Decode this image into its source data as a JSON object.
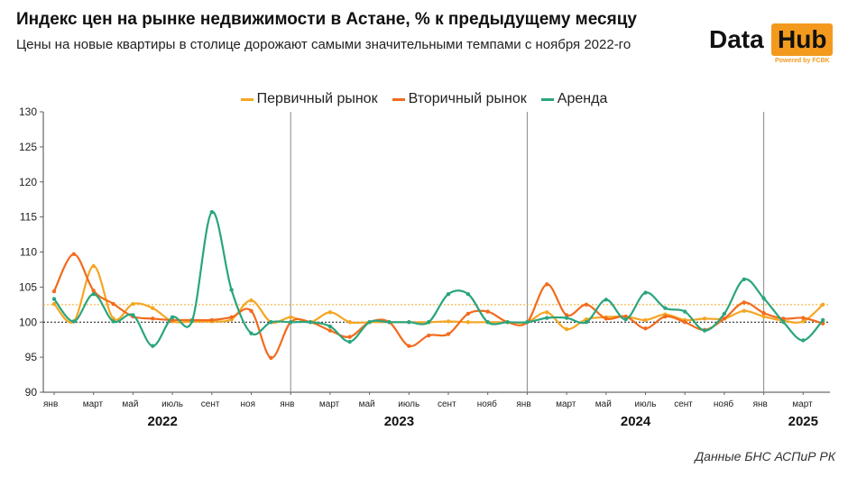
{
  "header": {
    "title": "Индекс цен на рынке недвижимости в Астане, % к предыдущему месяцу",
    "subtitle": "Цены на новые квартиры в столице дорожают самыми значительными темпами с ноября 2022-го"
  },
  "logo": {
    "data": "Data",
    "hub": "Hub",
    "powered": "Powered by FCBK"
  },
  "source": "Данные БНС АСПиР РК",
  "colors": {
    "primary": "#f5a623",
    "secondary": "#f26b1d",
    "rent": "#2aa57e",
    "baseline": "#111111",
    "axis": "#666666"
  },
  "chart_data": {
    "type": "line",
    "ylim": [
      90,
      130
    ],
    "yticks": [
      90,
      95,
      100,
      105,
      110,
      115,
      120,
      125,
      130
    ],
    "x_tick_labels": [
      "янв",
      "март",
      "май",
      "июль",
      "сент",
      "ноя",
      "янв",
      "март",
      "май",
      "июль",
      "сент",
      "нояб",
      "янв",
      "март",
      "май",
      "июль",
      "сент",
      "нояб",
      "янв",
      "март"
    ],
    "x_tick_months": [
      0,
      2,
      4,
      6,
      8,
      10,
      12,
      14,
      16,
      18,
      20,
      22,
      24,
      26,
      28,
      30,
      32,
      34,
      36,
      38
    ],
    "years": [
      {
        "label": "2022",
        "center_month": 5.5
      },
      {
        "label": "2023",
        "center_month": 17.5
      },
      {
        "label": "2024",
        "center_month": 29.5
      },
      {
        "label": "2025",
        "center_month": 38
      }
    ],
    "year_separators_months": [
      12,
      24,
      36
    ],
    "reference_lines": [
      {
        "value": 102.5,
        "color": "#f5a623",
        "style": "dotted"
      },
      {
        "value": 100,
        "color": "#111111",
        "style": "dotted"
      }
    ],
    "series": [
      {
        "name": "Первичный рынок",
        "color": "#f5a623",
        "values": [
          102.6,
          100.1,
          108.0,
          100.5,
          102.6,
          102.0,
          100.1,
          100.1,
          100.1,
          100.4,
          103.1,
          100.0,
          100.7,
          100.0,
          101.4,
          100.0,
          100.0,
          100.0,
          100.0,
          100.0,
          100.1,
          100.0,
          100.0,
          100.0,
          100.0,
          101.4,
          99.0,
          100.4,
          100.7,
          100.8,
          100.3,
          101.1,
          100.3,
          100.5,
          100.5,
          101.6,
          100.8,
          100.2,
          100.1,
          102.5
        ]
      },
      {
        "name": "Вторичный рынок",
        "color": "#f26b1d",
        "values": [
          104.4,
          109.7,
          104.5,
          102.6,
          100.8,
          100.5,
          100.3,
          100.3,
          100.3,
          100.7,
          101.6,
          94.9,
          100.0,
          100.0,
          98.8,
          97.9,
          100.0,
          100.0,
          96.6,
          98.1,
          98.3,
          101.2,
          101.5,
          100.0,
          100.0,
          105.4,
          101.0,
          102.5,
          100.5,
          100.8,
          99.1,
          100.8,
          100.0,
          98.9,
          100.5,
          102.8,
          101.3,
          100.5,
          100.6,
          99.8
        ]
      },
      {
        "name": "Аренда",
        "color": "#2aa57e",
        "values": [
          103.3,
          100.1,
          104.0,
          100.1,
          101.0,
          96.6,
          100.7,
          100.2,
          115.7,
          104.6,
          98.4,
          100.0,
          100.0,
          100.0,
          99.4,
          97.2,
          100.0,
          100.0,
          100.0,
          100.0,
          104.0,
          104.0,
          100.0,
          100.0,
          100.0,
          100.6,
          100.6,
          100.0,
          103.2,
          100.4,
          104.2,
          102.0,
          101.5,
          98.8,
          101.2,
          106.1,
          103.4,
          100.0,
          97.4,
          100.3
        ]
      }
    ]
  }
}
